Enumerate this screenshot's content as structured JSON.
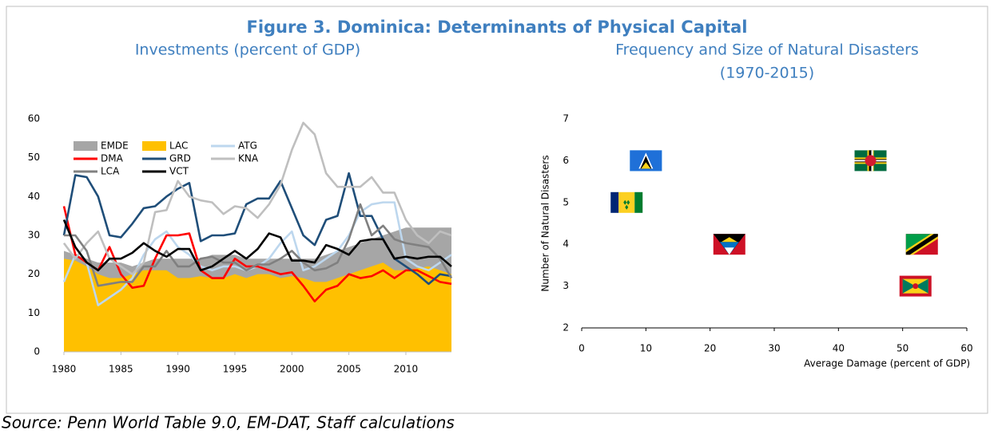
{
  "title": "Figure 3. Dominica: Determinants of Physical Capital",
  "source": "Source: Penn World Table 9.0, EM-DAT, Staff calculations",
  "chart_data": [
    {
      "type": "line",
      "title": "Investments (percent of GDP)",
      "x": [
        1980,
        1981,
        1982,
        1983,
        1984,
        1985,
        1986,
        1987,
        1988,
        1989,
        1990,
        1991,
        1992,
        1993,
        1994,
        1995,
        1996,
        1997,
        1998,
        1999,
        2000,
        2001,
        2002,
        2003,
        2004,
        2005,
        2006,
        2007,
        2008,
        2009,
        2010,
        2011,
        2012,
        2013,
        2014
      ],
      "xlim": [
        1980,
        2014
      ],
      "xticks": [
        1980,
        1985,
        1990,
        1995,
        2000,
        2005,
        2010
      ],
      "ylim": [
        0,
        60
      ],
      "yticks": [
        0,
        10,
        20,
        30,
        40,
        50,
        60
      ],
      "series": [
        {
          "name": "EMDE",
          "kind": "area",
          "color": "#a6a6a6",
          "values": [
            26,
            25,
            24,
            23,
            23,
            23,
            22,
            23,
            24,
            24,
            24,
            24,
            24,
            25,
            25,
            25,
            24,
            24,
            24,
            24,
            24,
            24,
            24,
            25,
            26,
            27,
            28,
            29,
            30,
            31,
            32,
            32,
            32,
            32,
            32
          ]
        },
        {
          "name": "LAC",
          "kind": "area",
          "color": "#ffc000",
          "values": [
            24,
            23.5,
            22,
            20,
            19,
            19,
            20,
            21,
            21,
            21,
            19,
            19,
            19.5,
            19,
            19,
            20,
            19,
            20,
            20,
            19,
            19.5,
            19,
            18,
            18,
            19,
            20,
            21,
            22,
            23,
            21,
            21,
            21.5,
            22,
            21,
            20
          ]
        },
        {
          "name": "ATG",
          "kind": "line",
          "color": "#bdd7ee",
          "values": [
            18,
            25,
            23,
            12,
            14,
            16,
            19,
            25,
            29,
            31,
            27,
            25,
            22,
            21,
            22,
            22,
            21,
            22,
            24,
            28,
            31,
            21,
            22,
            24,
            26,
            30,
            36,
            38,
            38.5,
            38.5,
            24,
            22,
            21,
            23,
            25
          ]
        },
        {
          "name": "DMA",
          "kind": "line",
          "color": "#ff0000",
          "values": [
            37.5,
            25,
            23,
            21,
            27,
            20,
            16.5,
            17,
            24,
            30,
            30,
            30.5,
            21,
            19,
            19,
            24,
            22,
            22,
            21,
            20,
            20.5,
            17,
            13,
            16,
            17,
            20,
            19,
            19.5,
            21,
            19,
            21,
            21,
            19.5,
            18,
            17.5
          ]
        },
        {
          "name": "GRD",
          "kind": "line",
          "color": "#1f4e79",
          "values": [
            30,
            45.5,
            45,
            40,
            30,
            29.5,
            33,
            37,
            37.5,
            40,
            42,
            43.5,
            28.5,
            30,
            30,
            30.5,
            38,
            39.5,
            39.5,
            44,
            37,
            30,
            27.5,
            34,
            35,
            46,
            35,
            35,
            29,
            24,
            22,
            20,
            17.5,
            20,
            19.5
          ]
        },
        {
          "name": "KNA",
          "kind": "line",
          "color": "#bfbfbf",
          "values": [
            28,
            24,
            28,
            31,
            24,
            22,
            20,
            23,
            36,
            36.5,
            44,
            40,
            39,
            38.5,
            35.5,
            37.5,
            37,
            34.5,
            38,
            43,
            52,
            59,
            56,
            46,
            42.5,
            42.5,
            42.5,
            45,
            41,
            41,
            34,
            30,
            28,
            31,
            30
          ]
        },
        {
          "name": "LCA",
          "kind": "line",
          "color": "#808080",
          "values": [
            30,
            30,
            26,
            17,
            17.5,
            18,
            18,
            22,
            22,
            26,
            22,
            22,
            24,
            24.5,
            23,
            23,
            21,
            22.5,
            22.5,
            24,
            26,
            23,
            21,
            21.5,
            23,
            29,
            38,
            30,
            32.5,
            29,
            28,
            27.5,
            27,
            24,
            19
          ]
        },
        {
          "name": "VCT",
          "kind": "line",
          "color": "#000000",
          "values": [
            34,
            27,
            23,
            21,
            24,
            24,
            25.5,
            28,
            26,
            24.5,
            26.5,
            26.5,
            21,
            22,
            24,
            26,
            24,
            26.5,
            30.5,
            29.5,
            23.5,
            23.5,
            23,
            27.5,
            26.5,
            25,
            28.5,
            29,
            29,
            24,
            24.5,
            24,
            24.5,
            24.5,
            22
          ]
        }
      ]
    },
    {
      "type": "scatter",
      "title": "Frequency and Size of Natural Disasters",
      "subtitle": "(1970-2015)",
      "x_label": "Average Damage (percent of GDP)",
      "y_label": "Number of Natural Disasters",
      "x": [
        10,
        45,
        7,
        23,
        53,
        52
      ],
      "values": [
        6,
        6,
        5,
        4,
        4,
        3
      ],
      "xlim": [
        0,
        60
      ],
      "xticks": [
        0,
        10,
        20,
        30,
        40,
        50,
        60
      ],
      "ylim": [
        2,
        7
      ],
      "yticks": [
        2,
        3,
        4,
        5,
        6,
        7
      ]
    }
  ]
}
